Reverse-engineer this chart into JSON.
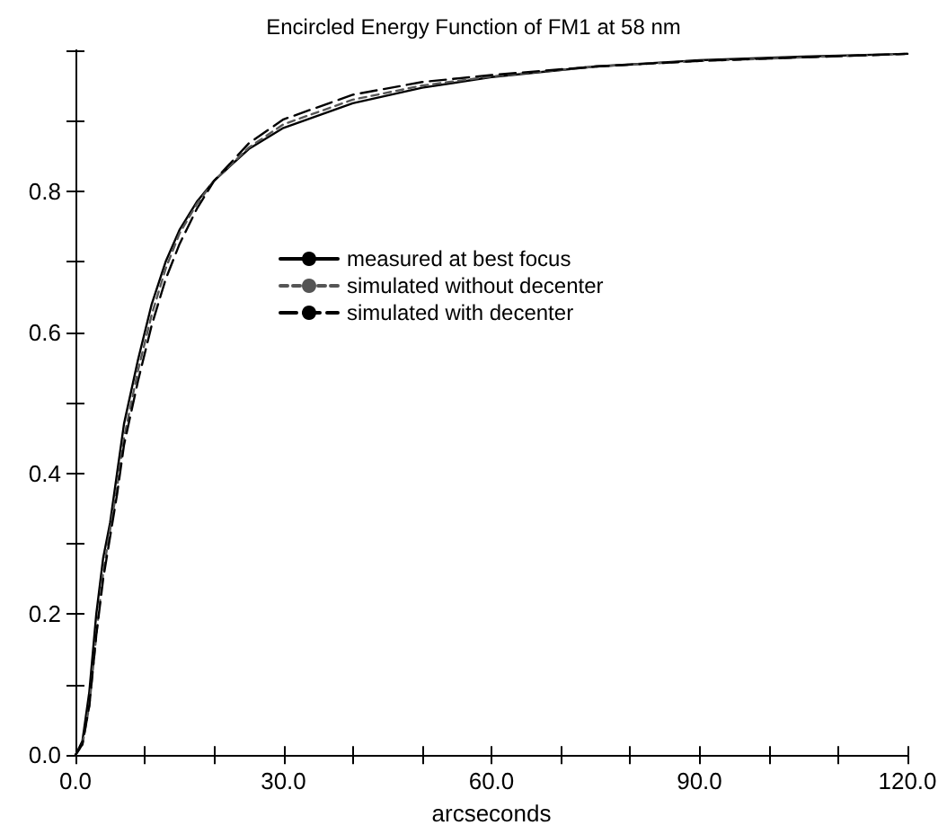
{
  "chart_data": {
    "type": "line",
    "title": "Encircled Energy Function of FM1 at 58 nm",
    "xlabel": "arcseconds",
    "x": [
      0,
      1,
      2,
      3,
      4,
      5,
      6,
      7,
      9,
      11,
      13,
      15,
      17.5,
      20,
      25,
      30,
      40,
      50,
      60,
      75,
      90,
      105,
      120
    ],
    "series": [
      {
        "name": "measured at best focus",
        "color": "#000000",
        "line_style": "solid",
        "values": [
          0,
          0.02,
          0.09,
          0.2,
          0.28,
          0.33,
          0.4,
          0.47,
          0.56,
          0.64,
          0.7,
          0.745,
          0.785,
          0.815,
          0.86,
          0.89,
          0.925,
          0.947,
          0.962,
          0.977,
          0.986,
          0.991,
          0.995
        ]
      },
      {
        "name": "simulated without decenter",
        "color": "#555555",
        "line_style": "dashed",
        "values": [
          0,
          0.015,
          0.07,
          0.17,
          0.26,
          0.32,
          0.38,
          0.45,
          0.545,
          0.625,
          0.69,
          0.74,
          0.782,
          0.815,
          0.862,
          0.895,
          0.93,
          0.95,
          0.963,
          0.977,
          0.985,
          0.99,
          0.995
        ]
      },
      {
        "name": "simulated with decenter",
        "color": "#000000",
        "line_style": "dashed",
        "values": [
          0,
          0.015,
          0.07,
          0.17,
          0.25,
          0.31,
          0.37,
          0.44,
          0.53,
          0.61,
          0.675,
          0.725,
          0.775,
          0.815,
          0.868,
          0.902,
          0.937,
          0.955,
          0.965,
          0.977,
          0.985,
          0.99,
          0.995
        ]
      }
    ],
    "xlim": [
      0,
      120
    ],
    "xticks": [
      {
        "value": 0,
        "label": "0.0"
      },
      {
        "value": 10,
        "label": null
      },
      {
        "value": 20,
        "label": null
      },
      {
        "value": 30,
        "label": "30.0"
      },
      {
        "value": 40,
        "label": null
      },
      {
        "value": 50,
        "label": null
      },
      {
        "value": 60,
        "label": "60.0"
      },
      {
        "value": 70,
        "label": null
      },
      {
        "value": 80,
        "label": null
      },
      {
        "value": 90,
        "label": "90.0"
      },
      {
        "value": 100,
        "label": null
      },
      {
        "value": 110,
        "label": null
      },
      {
        "value": 120,
        "label": "120.0"
      }
    ],
    "ylim": [
      0,
      1
    ],
    "yticks": [
      {
        "value": 0,
        "label": "0.0"
      },
      {
        "value": 0.1,
        "label": null
      },
      {
        "value": 0.2,
        "label": "0.2"
      },
      {
        "value": 0.3,
        "label": null
      },
      {
        "value": 0.4,
        "label": "0.4"
      },
      {
        "value": 0.5,
        "label": null
      },
      {
        "value": 0.6,
        "label": "0.6"
      },
      {
        "value": 0.7,
        "label": null
      },
      {
        "value": 0.8,
        "label": "0.8"
      },
      {
        "value": 0.9,
        "label": null
      },
      {
        "value": 1,
        "label": null
      }
    ],
    "grid": false,
    "legend": "center",
    "marker": "none"
  }
}
